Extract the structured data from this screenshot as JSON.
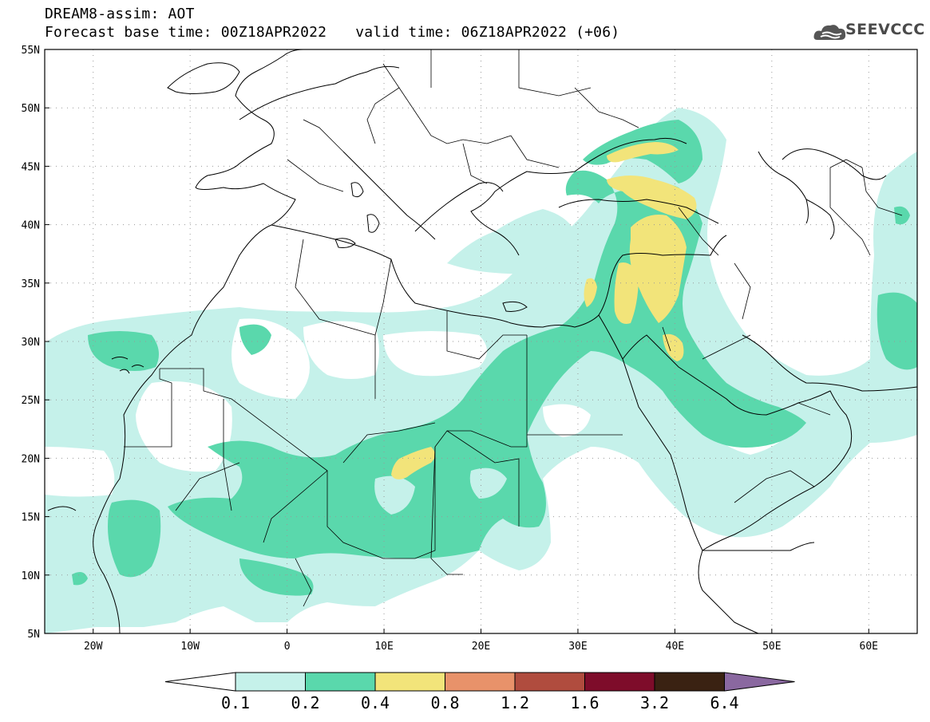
{
  "header": {
    "title": "DREAM8-assim: AOT",
    "base_time": "Forecast base time: 00Z18APR2022",
    "valid_time": "valid time: 06Z18APR2022 (+06)"
  },
  "logo": {
    "text": "SEEVCCC",
    "icon": "cloud-icon"
  },
  "map": {
    "lat_labels": [
      "55N",
      "50N",
      "45N",
      "40N",
      "35N",
      "30N",
      "25N",
      "20N",
      "15N",
      "10N",
      "5N"
    ],
    "lon_labels": [
      "20W",
      "10W",
      "0",
      "10E",
      "20E",
      "30E",
      "40E",
      "50E",
      "60E"
    ],
    "lon_range": [
      -25,
      65
    ],
    "lat_range": [
      5,
      55
    ]
  },
  "legend": {
    "levels": [
      "0.1",
      "0.2",
      "0.4",
      "0.8",
      "1.2",
      "1.6",
      "3.2",
      "6.4"
    ],
    "colors": [
      "#ffffff",
      "#c5f1ea",
      "#5ad8ac",
      "#f2e47a",
      "#e8926a",
      "#b04c3e",
      "#7e0c2a",
      "#3a2212",
      "#8a68a0"
    ]
  }
}
